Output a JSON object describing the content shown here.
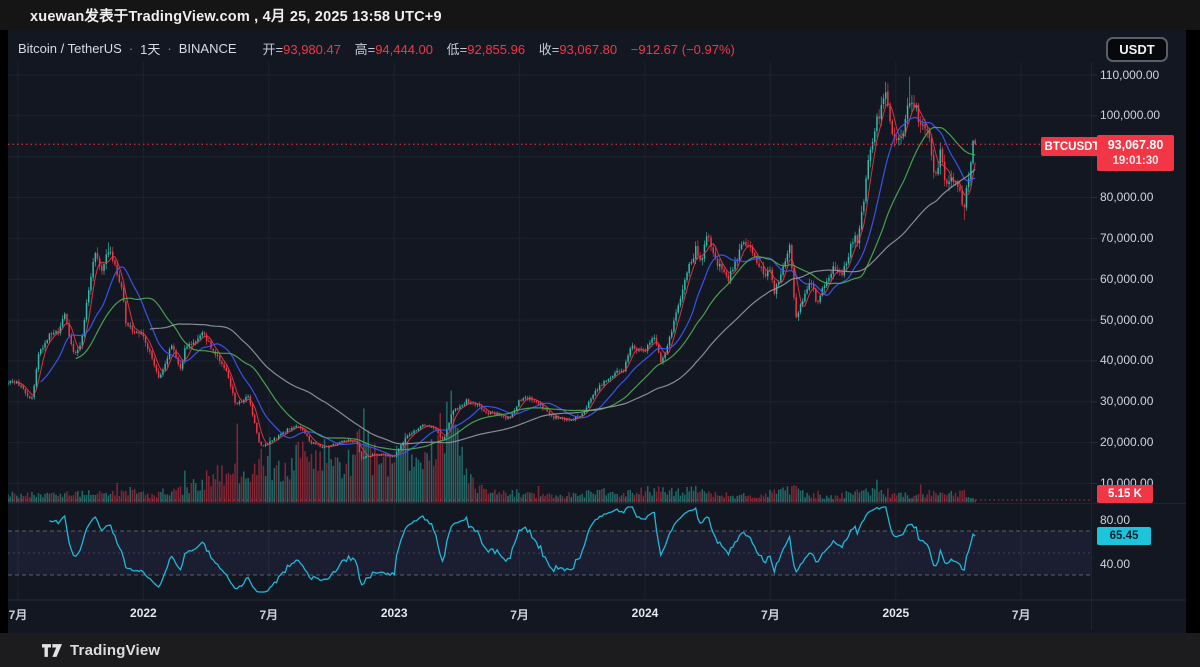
{
  "share_bar": {
    "text": "xuewan发表于TradingView.com , 4月 25, 2025 13:58 UTC+9"
  },
  "header": {
    "symbol": "Bitcoin / TetherUS",
    "separator": "·",
    "interval": "1天",
    "exchange": "BINANCE",
    "ohlc": [
      {
        "label": "开=",
        "value": "93,980.47"
      },
      {
        "label": "高=",
        "value": "94,444.00"
      },
      {
        "label": "低=",
        "value": "92,855.96"
      },
      {
        "label": "收=",
        "value": "93,067.80"
      }
    ],
    "change": "−912.67 (−0.97%)",
    "currency_button": "USDT"
  },
  "labels": {
    "symbol_badge": "BTCUSDT",
    "last_price": "93,067.80",
    "countdown": "19:01:30",
    "volume_badge": "5.15 K",
    "rsi_badge": "65.45"
  },
  "footer": {
    "brand": "TradingView"
  },
  "colors": {
    "bg": "#131722",
    "grid": "#1e222d",
    "axis_text": "#ced3dd",
    "up": "#2fbcab",
    "down": "#f23645",
    "accent_red": "#f23645",
    "ma_fast": "#f23645",
    "ma_medium": "#3d5afe",
    "ma_slow": "#4caf50",
    "ma_very_slow": "#9598a1",
    "rsi_line": "#1fb8d8",
    "rsi_band_line": "#6b6f7b",
    "rsi_band_fill": "rgba(140,110,255,0.07)"
  },
  "chart_data": {
    "type": "candlestick",
    "title": "Bitcoin / TetherUS · 1天 · BINANCE",
    "symbol": "BTCUSDT",
    "exchange": "BINANCE",
    "interval": "1D",
    "grid": true,
    "x_axis": {
      "unit": "months_from_2021-07",
      "visible_range": [
        "2021-06",
        "2025-08"
      ],
      "ticks": [
        {
          "label": "7月",
          "m": 0
        },
        {
          "label": "2022",
          "m": 6
        },
        {
          "label": "7月",
          "m": 12
        },
        {
          "label": "2023",
          "m": 18
        },
        {
          "label": "7月",
          "m": 24
        },
        {
          "label": "2024",
          "m": 30
        },
        {
          "label": "7月",
          "m": 36
        },
        {
          "label": "2025",
          "m": 42
        },
        {
          "label": "7月",
          "m": 48
        }
      ]
    },
    "y_axis": {
      "visible_min": 8000,
      "visible_max": 113000,
      "ticks": [
        {
          "label": "110,000.00",
          "value": 110000
        },
        {
          "label": "100,000.00",
          "value": 100000
        },
        {
          "label": "90,000.00",
          "value": 90000
        },
        {
          "label": "80,000.00",
          "value": 80000
        },
        {
          "label": "70,000.00",
          "value": 70000
        },
        {
          "label": "60,000.00",
          "value": 60000
        },
        {
          "label": "50,000.00",
          "value": 50000
        },
        {
          "label": "40,000.00",
          "value": 40000
        },
        {
          "label": "30,000.00",
          "value": 30000
        },
        {
          "label": "20,000.00",
          "value": 20000
        },
        {
          "label": "10,000.00",
          "value": 10000
        }
      ]
    },
    "last_bar": {
      "open": 93980.47,
      "high": 94444.0,
      "low": 92855.96,
      "close": 93067.8,
      "change": -912.67,
      "change_pct": -0.97,
      "countdown": "19:01:30"
    },
    "price_line": {
      "value": 93067.8,
      "label": "93,067.80"
    },
    "price_keyframes": [
      [
        -0.5,
        35200
      ],
      [
        0,
        34600
      ],
      [
        0.65,
        30200
      ],
      [
        1,
        41600
      ],
      [
        1.5,
        46000
      ],
      [
        2,
        47100
      ],
      [
        2.2,
        52300
      ],
      [
        2.7,
        41200
      ],
      [
        3,
        43800
      ],
      [
        3.65,
        66500
      ],
      [
        4,
        61300
      ],
      [
        4.3,
        67800
      ],
      [
        5,
        57000
      ],
      [
        5.15,
        49300
      ],
      [
        5.5,
        47500
      ],
      [
        6,
        46200
      ],
      [
        6.75,
        35600
      ],
      [
        7,
        38500
      ],
      [
        7.35,
        44200
      ],
      [
        7.8,
        37300
      ],
      [
        8,
        43200
      ],
      [
        8.95,
        47200
      ],
      [
        9,
        45500
      ],
      [
        9.8,
        38600
      ],
      [
        10,
        37700
      ],
      [
        10.4,
        29200
      ],
      [
        10.8,
        30000
      ],
      [
        11,
        31800
      ],
      [
        11.6,
        19000
      ],
      [
        12,
        19900
      ],
      [
        12.95,
        23300
      ],
      [
        13.45,
        24300
      ],
      [
        14,
        20050
      ],
      [
        14.6,
        18900
      ],
      [
        15,
        19400
      ],
      [
        15.9,
        20600
      ],
      [
        16.2,
        20200
      ],
      [
        16.45,
        16200
      ],
      [
        17,
        17100
      ],
      [
        17.5,
        16900
      ],
      [
        18,
        16550
      ],
      [
        18.5,
        20900
      ],
      [
        19,
        23100
      ],
      [
        19.5,
        24400
      ],
      [
        20,
        23150
      ],
      [
        20.35,
        20300
      ],
      [
        20.8,
        27800
      ],
      [
        21,
        28500
      ],
      [
        21.45,
        30200
      ],
      [
        22,
        29250
      ],
      [
        22.5,
        26900
      ],
      [
        23,
        27200
      ],
      [
        23.5,
        25600
      ],
      [
        24,
        30450
      ],
      [
        24.4,
        31100
      ],
      [
        25,
        29200
      ],
      [
        25.6,
        26200
      ],
      [
        26,
        25900
      ],
      [
        26.4,
        25300
      ],
      [
        27,
        26950
      ],
      [
        27.8,
        33900
      ],
      [
        28,
        34650
      ],
      [
        28.5,
        36900
      ],
      [
        29,
        37700
      ],
      [
        29.3,
        43700
      ],
      [
        30,
        42250
      ],
      [
        30.4,
        46200
      ],
      [
        30.75,
        39800
      ],
      [
        31,
        42550
      ],
      [
        31.5,
        51500
      ],
      [
        32,
        61150
      ],
      [
        32.45,
        68000
      ],
      [
        32.65,
        64000
      ],
      [
        33,
        71300
      ],
      [
        33.45,
        64100
      ],
      [
        34,
        60600
      ],
      [
        34.7,
        68300
      ],
      [
        35,
        67500
      ],
      [
        35.8,
        60500
      ],
      [
        36,
        62700
      ],
      [
        36.2,
        56300
      ],
      [
        36.9,
        67800
      ],
      [
        37,
        64600
      ],
      [
        37.2,
        50100
      ],
      [
        37.8,
        58900
      ],
      [
        38,
        59000
      ],
      [
        38.2,
        54200
      ],
      [
        39,
        63300
      ],
      [
        39.35,
        60500
      ],
      [
        40,
        70200
      ],
      [
        40.18,
        69200
      ],
      [
        40.5,
        80000
      ],
      [
        40.75,
        91500
      ],
      [
        41,
        96400
      ],
      [
        41.2,
        100800
      ],
      [
        41.55,
        105200
      ],
      [
        41.8,
        95800
      ],
      [
        42,
        93400
      ],
      [
        42.3,
        94600
      ],
      [
        42.62,
        104200
      ],
      [
        43,
        102400
      ],
      [
        43.12,
        97100
      ],
      [
        43.5,
        96800
      ],
      [
        43.9,
        85000
      ],
      [
        44,
        84350
      ],
      [
        44.12,
        92500
      ],
      [
        44.35,
        83200
      ],
      [
        44.7,
        84200
      ],
      [
        45,
        82550
      ],
      [
        45.25,
        77200
      ],
      [
        45.5,
        85000
      ],
      [
        45.8,
        93067.8
      ]
    ],
    "extremes": [
      {
        "m": 4.3,
        "price": 69000,
        "kind": "high"
      },
      {
        "m": 16.45,
        "price": 15500,
        "kind": "low"
      },
      {
        "m": 41.55,
        "price": 108300,
        "kind": "high"
      },
      {
        "m": 42.62,
        "price": 109600,
        "kind": "high"
      },
      {
        "m": 45.25,
        "price": 74500,
        "kind": "low"
      }
    ],
    "volume_keyframes": [
      [
        -0.5,
        9
      ],
      [
        1,
        11
      ],
      [
        3,
        10
      ],
      [
        4.3,
        12
      ],
      [
        5.15,
        15
      ],
      [
        6,
        10
      ],
      [
        7,
        9
      ],
      [
        8,
        18
      ],
      [
        8.9,
        26
      ],
      [
        9.5,
        30
      ],
      [
        10,
        32
      ],
      [
        10.45,
        44
      ],
      [
        11,
        26
      ],
      [
        11.6,
        48
      ],
      [
        12.2,
        40
      ],
      [
        13,
        50
      ],
      [
        13.6,
        58
      ],
      [
        14,
        52
      ],
      [
        14.6,
        60
      ],
      [
        15,
        48
      ],
      [
        15.9,
        55
      ],
      [
        16.45,
        85
      ],
      [
        17,
        55
      ],
      [
        17.6,
        42
      ],
      [
        18,
        40
      ],
      [
        18.55,
        68
      ],
      [
        19,
        58
      ],
      [
        19.5,
        70
      ],
      [
        20,
        62
      ],
      [
        20.35,
        92
      ],
      [
        20.7,
        108
      ],
      [
        21,
        75
      ],
      [
        21.5,
        30
      ],
      [
        22,
        16
      ],
      [
        23,
        12
      ],
      [
        24,
        11
      ],
      [
        25,
        9
      ],
      [
        26,
        8
      ],
      [
        27.8,
        13
      ],
      [
        29,
        9
      ],
      [
        29.3,
        12
      ],
      [
        30.4,
        15
      ],
      [
        31.5,
        12
      ],
      [
        32,
        17
      ],
      [
        32.5,
        14
      ],
      [
        33,
        11
      ],
      [
        34,
        9
      ],
      [
        35,
        8
      ],
      [
        36.2,
        13
      ],
      [
        37.2,
        16
      ],
      [
        38,
        8
      ],
      [
        39,
        7
      ],
      [
        40.5,
        13
      ],
      [
        41.2,
        13
      ],
      [
        41.8,
        9
      ],
      [
        42.62,
        9
      ],
      [
        43.9,
        11
      ],
      [
        44.35,
        10
      ],
      [
        45.25,
        11
      ],
      [
        45.8,
        5
      ]
    ],
    "volume_current_label": "5.15 K",
    "moving_averages": [
      {
        "name": "ma-fast",
        "window_bars": 5,
        "color": "#f23645",
        "width": 1
      },
      {
        "name": "ma-medium",
        "window_bars": 16,
        "color": "#3d5afe",
        "width": 1.2
      },
      {
        "name": "ma-slow",
        "window_bars": 32,
        "color": "#4caf50",
        "width": 1.2
      },
      {
        "name": "ma-very-slow",
        "window_bars": 66,
        "color": "#9598a1",
        "width": 1.2
      }
    ],
    "rsi": {
      "period": 14,
      "current": 65.45,
      "upper_band": 70,
      "middle_band": 50,
      "lower_band": 30,
      "color": "#1fb8d8",
      "axis_labels": [
        {
          "label": "80.00",
          "value": 80
        },
        {
          "label": "40.00",
          "value": 40
        }
      ]
    }
  }
}
